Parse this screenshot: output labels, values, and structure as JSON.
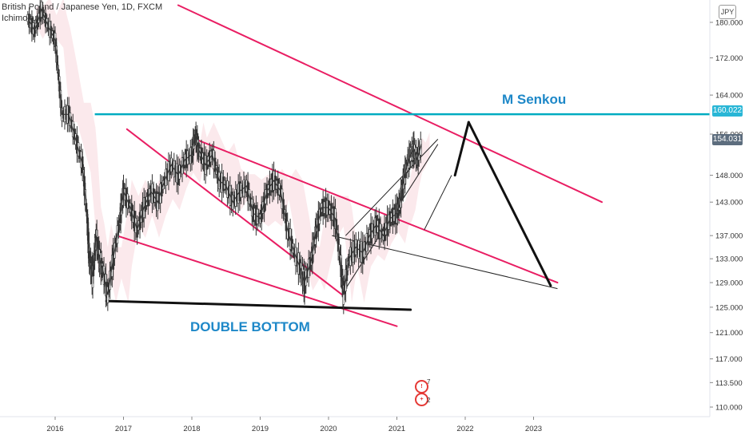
{
  "legend": {
    "symbol_line": "British Pound / Japanese Yen, 1D, FXCM",
    "indicator": "Ichimoku"
  },
  "currency_badge": "JPY",
  "price_tags": {
    "level": "160.022",
    "last": "154.031"
  },
  "colors": {
    "channel": "#e91e63",
    "resistance": "#00acc1",
    "support": "#111111",
    "projection": "#111111",
    "annotation": "#1e88c8",
    "candle_up": "#333333",
    "cloud": "#f8d7dd"
  },
  "annotations": {
    "top_label": "M Senkou",
    "bottom_label": "DOUBLE  BOTTOM"
  },
  "events": [
    {
      "icon": "event-flag-icon",
      "count": "7"
    },
    {
      "icon": "uk-flag-icon",
      "count": "2"
    }
  ],
  "chart_data": {
    "type": "line",
    "title": "British Pound / Japanese Yen, 1D, FXCM",
    "xlabel": "",
    "ylabel": "",
    "x_ticks": [
      "2016",
      "2017",
      "2018",
      "2019",
      "2020",
      "2021",
      "2022",
      "2023"
    ],
    "y_ticks": [
      "110.000",
      "113.500",
      "117.000",
      "121.000",
      "125.000",
      "129.000",
      "133.000",
      "137.000",
      "143.000",
      "148.000",
      "156.000",
      "164.000",
      "172.000",
      "180.000"
    ],
    "y_scale": "log",
    "ylim": [
      108.5,
      183
    ],
    "xlim": [
      2015.6,
      2023.1
    ],
    "grid": false,
    "series": [
      {
        "values": [
          [
            2015.6,
            181
          ],
          [
            2015.7,
            178
          ],
          [
            2015.8,
            183
          ],
          [
            2015.9,
            179
          ],
          [
            2016.0,
            176
          ],
          [
            2016.05,
            168
          ],
          [
            2016.1,
            160
          ],
          [
            2016.2,
            160
          ],
          [
            2016.3,
            155
          ],
          [
            2016.4,
            150
          ],
          [
            2016.47,
            140
          ],
          [
            2016.5,
            133
          ],
          [
            2016.55,
            130
          ],
          [
            2016.6,
            137
          ],
          [
            2016.65,
            133
          ],
          [
            2016.7,
            131
          ],
          [
            2016.77,
            127
          ],
          [
            2016.85,
            133
          ],
          [
            2016.95,
            140
          ],
          [
            2017.0,
            145
          ],
          [
            2017.1,
            142
          ],
          [
            2017.2,
            138
          ],
          [
            2017.3,
            142
          ],
          [
            2017.4,
            145
          ],
          [
            2017.5,
            143
          ],
          [
            2017.6,
            147
          ],
          [
            2017.7,
            150
          ],
          [
            2017.8,
            148
          ],
          [
            2017.9,
            151
          ],
          [
            2018.0,
            152
          ],
          [
            2018.05,
            156
          ],
          [
            2018.1,
            153
          ],
          [
            2018.2,
            150
          ],
          [
            2018.3,
            152
          ],
          [
            2018.4,
            147
          ],
          [
            2018.5,
            146
          ],
          [
            2018.6,
            143
          ],
          [
            2018.7,
            145
          ],
          [
            2018.8,
            146
          ],
          [
            2018.9,
            141
          ],
          [
            2019.0,
            140
          ],
          [
            2019.1,
            145
          ],
          [
            2019.2,
            147
          ],
          [
            2019.3,
            145
          ],
          [
            2019.4,
            138
          ],
          [
            2019.5,
            134
          ],
          [
            2019.6,
            131
          ],
          [
            2019.65,
            129
          ],
          [
            2019.75,
            133
          ],
          [
            2019.82,
            138
          ],
          [
            2019.9,
            142
          ],
          [
            2020.0,
            142
          ],
          [
            2020.1,
            140
          ],
          [
            2020.17,
            133
          ],
          [
            2020.22,
            127
          ],
          [
            2020.3,
            133
          ],
          [
            2020.4,
            135
          ],
          [
            2020.5,
            134
          ],
          [
            2020.6,
            137
          ],
          [
            2020.7,
            139
          ],
          [
            2020.8,
            137
          ],
          [
            2020.9,
            140
          ],
          [
            2021.0,
            141
          ],
          [
            2021.05,
            143
          ],
          [
            2021.1,
            147
          ],
          [
            2021.15,
            150
          ],
          [
            2021.2,
            152
          ],
          [
            2021.25,
            153
          ],
          [
            2021.3,
            151
          ],
          [
            2021.36,
            154.031
          ]
        ]
      }
    ],
    "levels": [
      {
        "kind": "resistance",
        "label": "M Senkou",
        "y": 160.022
      }
    ],
    "trend_lines": [
      {
        "kind": "channel",
        "from": [
          2017.05,
          157
        ],
        "to": [
          2020.2,
          127
        ]
      },
      {
        "kind": "channel",
        "from": [
          2018.05,
          155
        ],
        "to": [
          2023.35,
          129
        ]
      },
      {
        "kind": "channel",
        "from": [
          2016.9,
          137
        ],
        "to": [
          2021.0,
          122
        ]
      },
      {
        "kind": "channel",
        "from": [
          2017.8,
          184
        ],
        "to": [
          2024.0,
          143
        ]
      },
      {
        "kind": "support",
        "from": [
          2016.75,
          126
        ],
        "to": [
          2021.2,
          124.6
        ]
      },
      {
        "kind": "projection",
        "from": [
          2021.85,
          148
        ],
        "to": [
          2022.05,
          158.4
        ]
      },
      {
        "kind": "projection",
        "from": [
          2022.05,
          158.4
        ],
        "to": [
          2023.25,
          128.5
        ]
      }
    ]
  }
}
